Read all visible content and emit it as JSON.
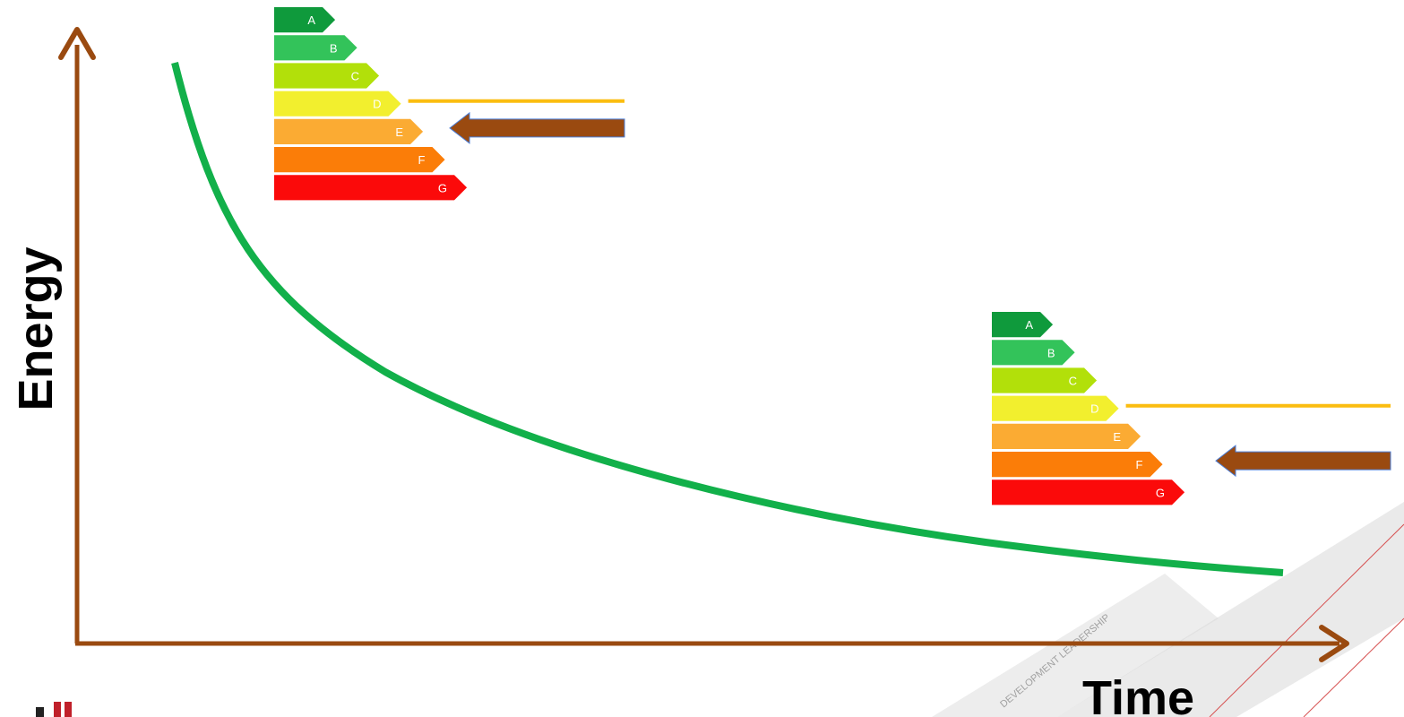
{
  "axes": {
    "x_label": "Time",
    "y_label": "Energy",
    "color": "#9a4a10"
  },
  "curve": {
    "color": "#12b04a",
    "shape": "decaying"
  },
  "energy_labels": [
    {
      "id": "early",
      "classes": [
        "A",
        "B",
        "C",
        "D",
        "E",
        "F",
        "G"
      ],
      "threshold_class": "D",
      "indicated_class": "E"
    },
    {
      "id": "later",
      "classes": [
        "A",
        "B",
        "C",
        "D",
        "E",
        "F",
        "G"
      ],
      "threshold_class": "D",
      "indicated_class": "F"
    }
  ],
  "class_colors": {
    "A": "#0f9a3c",
    "B": "#33c35a",
    "C": "#b2e00a",
    "D": "#f2ef2e",
    "E": "#fbab33",
    "F": "#fb7d08",
    "G": "#fb0a0a"
  },
  "threshold_line_color": "#fbbd10",
  "indicator_arrow_color": "#9a4a10",
  "watermark": {
    "text": "DEVELOPMENT LEADERSHIP",
    "color": "#d8d8d8"
  },
  "logo": {
    "icon": "brand-logo-icon",
    "color": "#c0202a"
  }
}
